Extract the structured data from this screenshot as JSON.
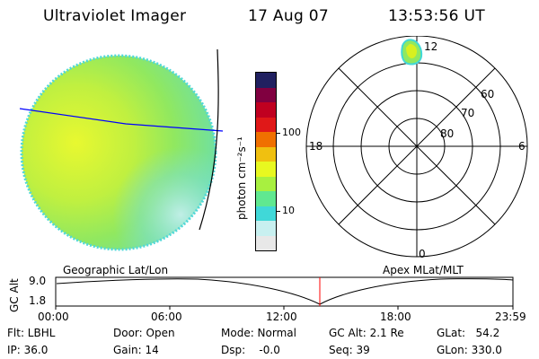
{
  "header": {
    "title": "Ultraviolet Imager",
    "date": "17 Aug 07",
    "time": "13:53:56 UT"
  },
  "colorbar": {
    "label": "photon cm⁻²s⁻¹",
    "tick_100": "100",
    "tick_10": "10",
    "colors": [
      "#e8e8e8",
      "#c8f0f0",
      "#40d8d8",
      "#60e890",
      "#a8f040",
      "#e8f820",
      "#f0c010",
      "#f07000",
      "#e01818",
      "#c00020",
      "#800040",
      "#202060"
    ]
  },
  "polar": {
    "mlt_12": "12",
    "mlt_18": "18",
    "mlt_6": "6",
    "mlt_0": "0",
    "lat_60": "60",
    "lat_70": "70",
    "lat_80": "80"
  },
  "timeline": {
    "left_label": "Geographic Lat/Lon",
    "right_label": "Apex MLat/MLT",
    "y_label": "GC Alt",
    "y_max": "9.0",
    "y_min": "1.8",
    "x_ticks": [
      "00:00",
      "06:00",
      "12:00",
      "18:00",
      "23:59"
    ]
  },
  "info": {
    "flt": "Flt: LBHL",
    "ip": "IP: 36.0",
    "door": "Door: Open",
    "gain": "Gain: 14",
    "mode": "Mode: Normal",
    "dsp": "Dsp:    -0.0",
    "gcalt": "GC Alt: 2.1 Re",
    "seq": "Seq: 39",
    "glat": "GLat:   54.2",
    "glon": "GLon: 330.0"
  },
  "colors": {
    "grid_line": "#0000ff",
    "marker": "#ff0000"
  }
}
